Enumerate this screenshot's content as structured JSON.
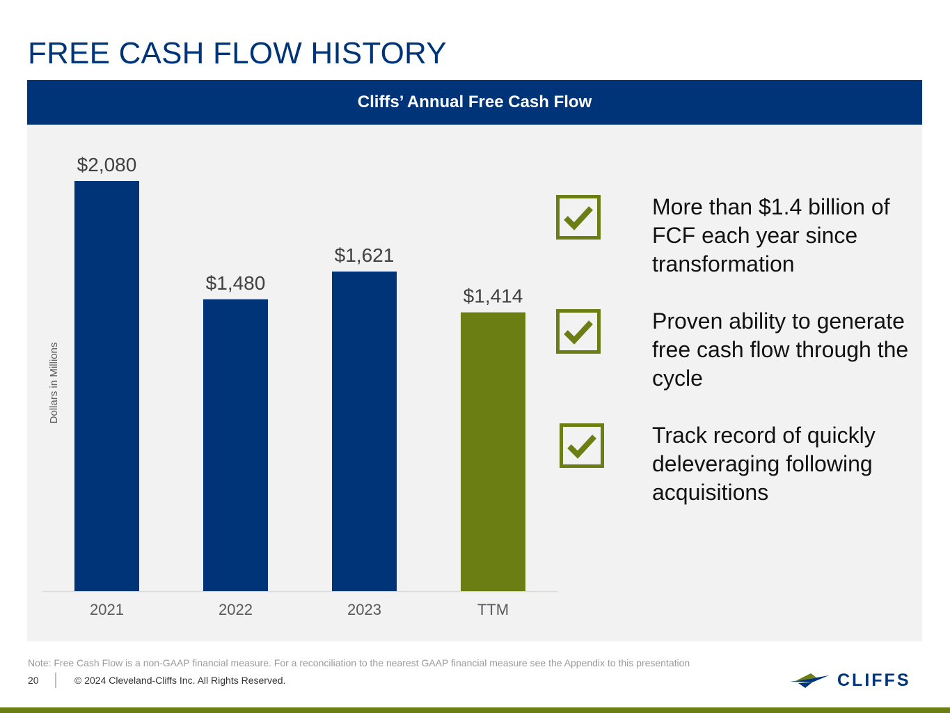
{
  "page": {
    "title": "FREE CASH FLOW HISTORY",
    "panel_title": "Cliffs’ Annual Free Cash Flow",
    "note": "Note: Free Cash Flow is a non-GAAP financial measure. For a reconciliation to the nearest GAAP financial measure see the Appendix to this presentation",
    "page_number": "20",
    "copyright": "© 2024 Cleveland-Cliffs Inc. All Rights Reserved.",
    "logo_text": "CLIFFS"
  },
  "bullets": [
    {
      "text": "More than $1.4 billion of FCF each year since transformation",
      "icon": "checkbox-icon"
    },
    {
      "text": "Proven ability to generate free cash flow through the cycle",
      "icon": "checkbox-icon"
    },
    {
      "text": "Track record of quickly deleveraging following acquisitions",
      "icon": "checkbox-icon"
    }
  ],
  "colors": {
    "navy": "#003478",
    "olive": "#6b7e14",
    "panel_bg": "#f2f2f2"
  },
  "chart_data": {
    "type": "bar",
    "categories": [
      "2021",
      "2022",
      "2023",
      "TTM"
    ],
    "values": [
      2080,
      1480,
      1621,
      1414
    ],
    "data_labels": [
      "$2,080",
      "$1,480",
      "$1,621",
      "$1,414"
    ],
    "bar_colors": [
      "#003478",
      "#003478",
      "#003478",
      "#6b7e14"
    ],
    "ylabel": "Dollars in Millions",
    "ylim": [
      0,
      2080
    ],
    "grid": false,
    "legend": "none"
  }
}
